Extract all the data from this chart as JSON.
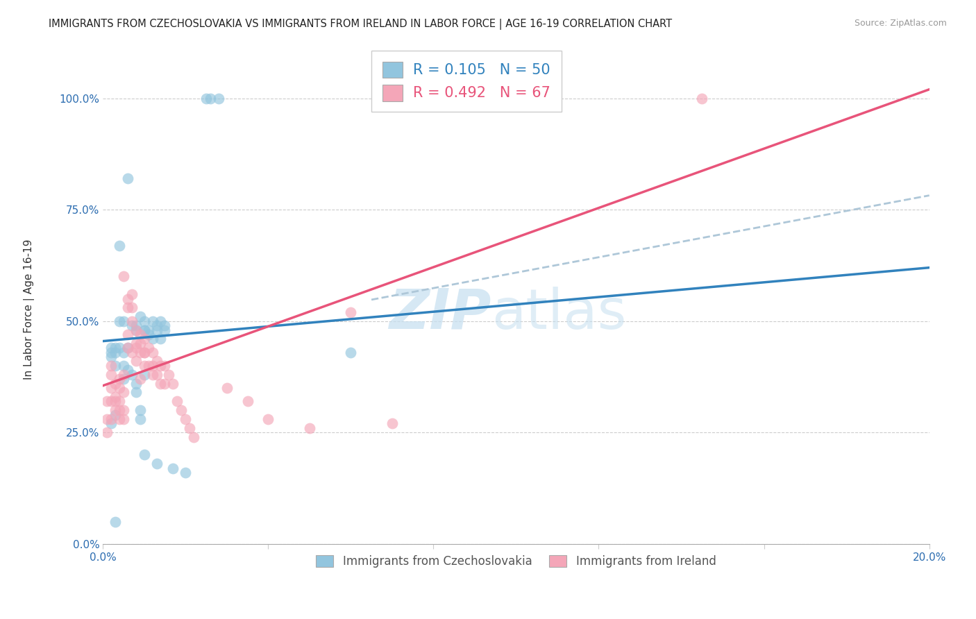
{
  "title": "IMMIGRANTS FROM CZECHOSLOVAKIA VS IMMIGRANTS FROM IRELAND IN LABOR FORCE | AGE 16-19 CORRELATION CHART",
  "source": "Source: ZipAtlas.com",
  "ylabel": "In Labor Force | Age 16-19",
  "legend_label1": "Immigrants from Czechoslovakia",
  "legend_label2": "Immigrants from Ireland",
  "R1": 0.105,
  "N1": 50,
  "R2": 0.492,
  "N2": 67,
  "xlim": [
    0.0,
    0.2
  ],
  "ylim": [
    0.0,
    1.1
  ],
  "yticks": [
    0.0,
    0.25,
    0.5,
    0.75,
    1.0
  ],
  "ytick_labels": [
    "0.0%",
    "25.0%",
    "50.0%",
    "75.0%",
    "100.0%"
  ],
  "xticks": [
    0.0,
    0.04,
    0.08,
    0.12,
    0.16,
    0.2
  ],
  "xtick_labels": [
    "0.0%",
    "",
    "",
    "",
    "",
    "20.0%"
  ],
  "color_blue": "#92c5de",
  "color_pink": "#f4a6b8",
  "color_line_blue": "#3182bd",
  "color_line_pink": "#e8547a",
  "color_dashed": "#aec7d8",
  "watermark_zip": "ZIP",
  "watermark_atlas": "atlas",
  "blue_line_x0": 0.0,
  "blue_line_y0": 0.455,
  "blue_line_x1": 0.2,
  "blue_line_y1": 0.62,
  "pink_line_x0": 0.0,
  "pink_line_y0": 0.355,
  "pink_line_x1": 0.2,
  "pink_line_y1": 1.02,
  "dash_line_x0": 0.065,
  "dash_line_y0": 0.548,
  "dash_line_x1": 0.2,
  "dash_line_y1": 0.782,
  "blue_x": [
    0.025,
    0.026,
    0.028,
    0.006,
    0.004,
    0.004,
    0.005,
    0.007,
    0.008,
    0.008,
    0.009,
    0.01,
    0.01,
    0.01,
    0.011,
    0.011,
    0.012,
    0.012,
    0.013,
    0.013,
    0.014,
    0.014,
    0.015,
    0.015,
    0.002,
    0.002,
    0.002,
    0.003,
    0.003,
    0.003,
    0.004,
    0.005,
    0.005,
    0.005,
    0.006,
    0.006,
    0.007,
    0.008,
    0.008,
    0.009,
    0.009,
    0.01,
    0.06,
    0.01,
    0.013,
    0.017,
    0.02,
    0.003,
    0.003,
    0.002
  ],
  "blue_y": [
    1.0,
    1.0,
    1.0,
    0.82,
    0.67,
    0.5,
    0.5,
    0.49,
    0.49,
    0.48,
    0.51,
    0.48,
    0.5,
    0.48,
    0.47,
    0.48,
    0.5,
    0.46,
    0.49,
    0.48,
    0.5,
    0.46,
    0.49,
    0.48,
    0.43,
    0.44,
    0.42,
    0.43,
    0.44,
    0.4,
    0.44,
    0.43,
    0.4,
    0.37,
    0.44,
    0.39,
    0.38,
    0.34,
    0.36,
    0.28,
    0.3,
    0.38,
    0.43,
    0.2,
    0.18,
    0.17,
    0.16,
    0.29,
    0.05,
    0.27
  ],
  "pink_x": [
    0.145,
    0.005,
    0.006,
    0.006,
    0.007,
    0.007,
    0.007,
    0.008,
    0.008,
    0.008,
    0.009,
    0.009,
    0.009,
    0.01,
    0.01,
    0.01,
    0.01,
    0.011,
    0.011,
    0.012,
    0.012,
    0.012,
    0.013,
    0.013,
    0.014,
    0.014,
    0.015,
    0.015,
    0.003,
    0.003,
    0.003,
    0.004,
    0.004,
    0.004,
    0.004,
    0.004,
    0.005,
    0.005,
    0.005,
    0.005,
    0.002,
    0.002,
    0.002,
    0.002,
    0.002,
    0.003,
    0.001,
    0.001,
    0.001,
    0.006,
    0.006,
    0.007,
    0.008,
    0.009,
    0.016,
    0.017,
    0.018,
    0.019,
    0.02,
    0.021,
    0.022,
    0.03,
    0.035,
    0.04,
    0.05,
    0.06,
    0.07
  ],
  "pink_y": [
    1.0,
    0.6,
    0.55,
    0.53,
    0.56,
    0.53,
    0.5,
    0.48,
    0.45,
    0.44,
    0.47,
    0.45,
    0.43,
    0.46,
    0.43,
    0.43,
    0.4,
    0.44,
    0.4,
    0.43,
    0.4,
    0.38,
    0.41,
    0.38,
    0.4,
    0.36,
    0.4,
    0.36,
    0.33,
    0.36,
    0.32,
    0.37,
    0.35,
    0.32,
    0.3,
    0.28,
    0.38,
    0.34,
    0.3,
    0.28,
    0.4,
    0.38,
    0.35,
    0.32,
    0.28,
    0.3,
    0.32,
    0.28,
    0.25,
    0.47,
    0.44,
    0.43,
    0.41,
    0.37,
    0.38,
    0.36,
    0.32,
    0.3,
    0.28,
    0.26,
    0.24,
    0.35,
    0.32,
    0.28,
    0.26,
    0.52,
    0.27
  ]
}
